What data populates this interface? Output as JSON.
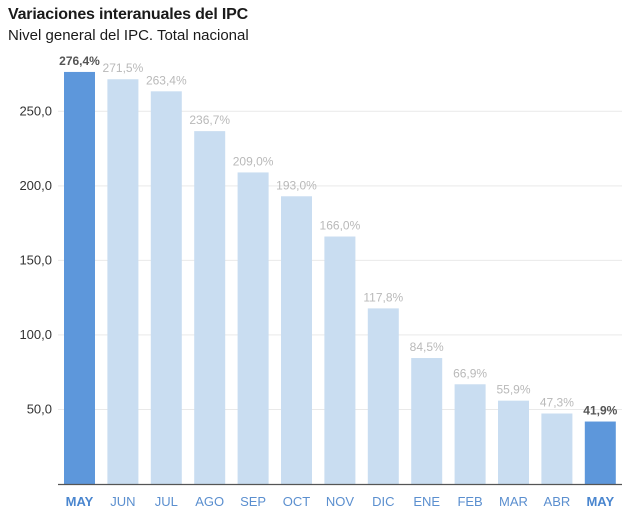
{
  "chart_data": {
    "type": "bar",
    "title": "Variaciones interanuales del IPC",
    "subtitle": "Nivel general del IPC. Total nacional",
    "categories": [
      "MAY",
      "JUN",
      "JUL",
      "AGO",
      "SEP",
      "OCT",
      "NOV",
      "DIC",
      "ENE",
      "FEB",
      "MAR",
      "ABR",
      "MAY"
    ],
    "values": [
      276.4,
      271.5,
      263.4,
      236.7,
      209.0,
      193.0,
      166.0,
      117.8,
      84.5,
      66.9,
      55.9,
      47.3,
      41.9
    ],
    "value_labels": [
      "276,4%",
      "271,5%",
      "263,4%",
      "236,7%",
      "209,0%",
      "193,0%",
      "166,0%",
      "117,8%",
      "84,5%",
      "66,9%",
      "55,9%",
      "47,3%",
      "41,9%"
    ],
    "highlighted": [
      true,
      false,
      false,
      false,
      false,
      false,
      false,
      false,
      false,
      false,
      false,
      false,
      true
    ],
    "yticks": [
      50,
      100,
      150,
      200,
      250
    ],
    "ytick_labels": [
      "50,0",
      "100,0",
      "150,0",
      "200,0",
      "250,0"
    ],
    "ylim": [
      0,
      290
    ],
    "grid": true,
    "xlabel": "",
    "ylabel": "",
    "colors": {
      "highlight_bar": "#5d97db",
      "normal_bar": "#c9ddf1",
      "highlight_label": "#555555",
      "normal_label": "#b9b9b9",
      "highlight_category": "#4a86cf",
      "normal_category": "#5b8fcf",
      "grid": "#e9e9e9",
      "axis": "#555555"
    }
  }
}
